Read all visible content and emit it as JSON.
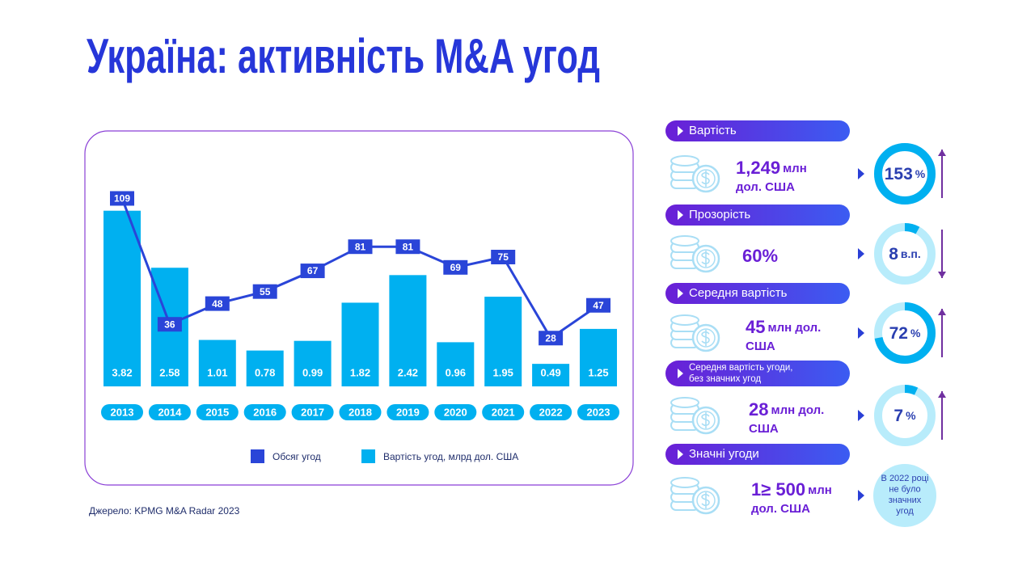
{
  "title": "Україна: активність M&A угод",
  "chart_data": {
    "type": "bar",
    "categories": [
      "2013",
      "2014",
      "2015",
      "2016",
      "2017",
      "2018",
      "2019",
      "2020",
      "2021",
      "2022",
      "2023"
    ],
    "series": [
      {
        "name": "Обсяг угод",
        "type": "line",
        "axis": "y2",
        "color": "#2a45d8",
        "values": [
          109,
          36,
          48,
          55,
          67,
          81,
          81,
          69,
          75,
          28,
          47
        ]
      },
      {
        "name": "Вартість  угод, млрд  дол. США",
        "type": "bar",
        "color": "#00b0f0",
        "values": [
          3.82,
          2.58,
          1.01,
          0.78,
          0.99,
          1.82,
          2.42,
          0.96,
          1.95,
          0.49,
          1.25
        ]
      }
    ],
    "ylim": [
      0,
      4.5
    ],
    "y2lim": [
      0,
      120
    ]
  },
  "source": "Джерело: KPMG M&A Radar 2023",
  "metrics": [
    {
      "header": [
        "Вартість"
      ],
      "amount": [
        "1,249",
        "млн"
      ],
      "line2": "дол. США",
      "change": {
        "value": 153,
        "unit": "%",
        "direction": "up"
      }
    },
    {
      "header": [
        "Прозорість"
      ],
      "amount": [
        "60%"
      ],
      "change": {
        "value": 8,
        "unit": "в.п.",
        "direction": "down"
      }
    },
    {
      "header": [
        "Середня вартість"
      ],
      "amount": [
        "45",
        "млн дол."
      ],
      "line2": "США",
      "change": {
        "value": 72,
        "unit": "%",
        "direction": "up"
      }
    },
    {
      "header": [
        "Середня вартість угоди,",
        "без значних угод"
      ],
      "amount": [
        "28",
        "млн дол."
      ],
      "line2": "США",
      "change": {
        "value": 7,
        "unit": "%",
        "direction": "up"
      }
    },
    {
      "header": [
        "Значні угоди"
      ],
      "amount": [
        "1≥ 500",
        "млн"
      ],
      "line2": "дол. США",
      "note": [
        "В 2022 році",
        "не було",
        "значних",
        "угод"
      ]
    }
  ]
}
